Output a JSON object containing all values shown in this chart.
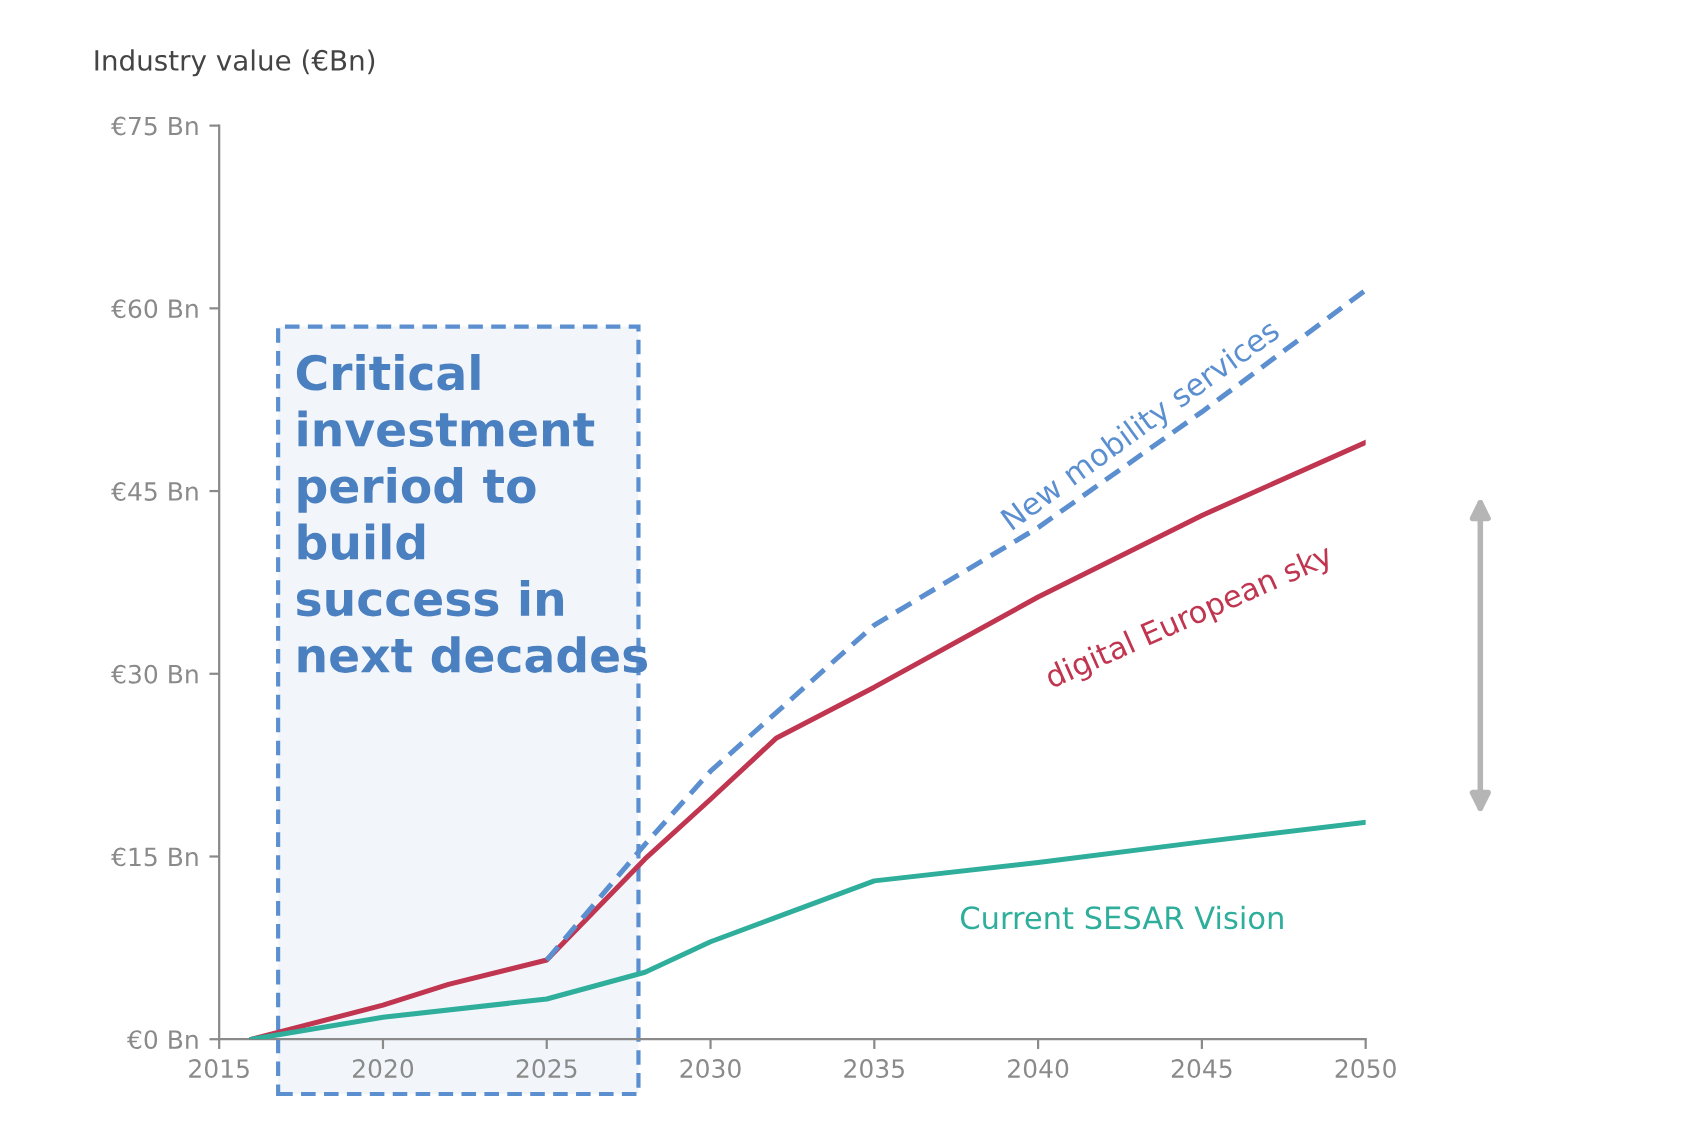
{
  "chart_data": {
    "type": "line",
    "ylabel": "Industry value (€Bn)",
    "xlim": [
      2015,
      2050
    ],
    "xticks": [
      2015,
      2020,
      2025,
      2030,
      2035,
      2040,
      2045,
      2050
    ],
    "ylim": [
      0,
      75
    ],
    "yticks": [
      {
        "value": 0,
        "label": "€0 Bn"
      },
      {
        "value": 15,
        "label": "€15 Bn"
      },
      {
        "value": 30,
        "label": "€30 Bn"
      },
      {
        "value": 45,
        "label": "€45 Bn"
      },
      {
        "value": 60,
        "label": "€60 Bn"
      },
      {
        "value": 75,
        "label": "€75 Bn"
      }
    ],
    "grid": false,
    "legend": false,
    "marker": "none",
    "series": [
      {
        "name": "New mobility services",
        "color": "#5b8fd0",
        "line_style": "dashed",
        "x": [
          2025,
          2028,
          2030,
          2035,
          2040,
          2045,
          2050
        ],
        "values": [
          6.5,
          16,
          22,
          34,
          42,
          51.5,
          61.5
        ]
      },
      {
        "name": "digital European sky",
        "color": "#c0354f",
        "line_style": "solid",
        "x": [
          2016,
          2020,
          2022,
          2025,
          2028,
          2030,
          2032,
          2035,
          2040,
          2045,
          2050
        ],
        "values": [
          0,
          2.8,
          4.5,
          6.5,
          14.8,
          19.7,
          24.7,
          28.9,
          36.3,
          43,
          49
        ]
      },
      {
        "name": "Current SESAR Vision",
        "color": "#2fae9c",
        "line_style": "solid",
        "x": [
          2016,
          2020,
          2025,
          2028,
          2030,
          2032,
          2035,
          2040,
          2045,
          2050
        ],
        "values": [
          0,
          1.8,
          3.3,
          5.5,
          8,
          10,
          13,
          14.5,
          16.2,
          17.8
        ]
      }
    ],
    "bands": [
      {
        "axis": "x",
        "from": 2016.8,
        "to": 2027.8,
        "label": "Critical\ninvestment\nperiod to\nbuild\nsuccess in\nnext decades",
        "color": "#5b8fd0"
      }
    ]
  }
}
